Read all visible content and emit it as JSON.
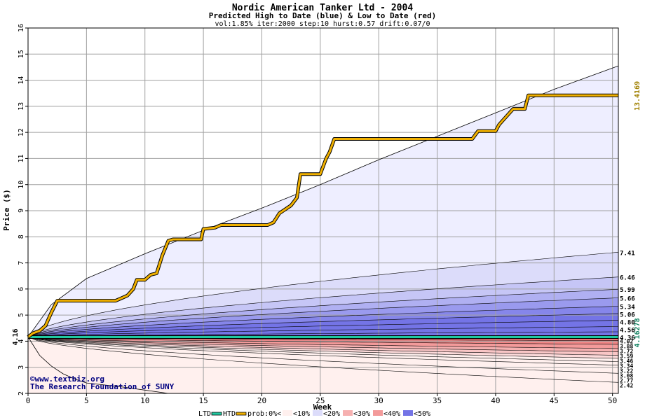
{
  "chart_data": {
    "type": "area",
    "title": "Nordic American Tanker Ltd - 2004",
    "subtitle": "Predicted High to Date (blue) &  Low to Date (red)",
    "params_line": "vol:1.85% iter:2000 step:10 hurst:0.57 drift:0.07/0",
    "xlabel": "Week",
    "ylabel": "Price ($)",
    "xlim": [
      0,
      50
    ],
    "ylim": [
      2,
      16
    ],
    "x_ticks": [
      0,
      5,
      10,
      15,
      20,
      25,
      30,
      35,
      40,
      45,
      50
    ],
    "y_ticks": [
      2,
      3,
      4,
      5,
      6,
      7,
      8,
      9,
      10,
      11,
      12,
      13,
      14,
      15,
      16
    ],
    "grid": true,
    "start_price": 4.16,
    "start_price_label": "4.16",
    "htd_end_label": "13.4169",
    "ltd_end_label": "4.16278",
    "colors": {
      "plot_bg": "#ffffff",
      "grid": "#a0a0a0",
      "htd": "#f0b000",
      "htd_edge": "#000000",
      "ltd": "#20c8a0",
      "htd_label": "#a08000",
      "ltd_label": "#108060",
      "watermark": "#000080",
      "blue_bands": [
        "#eeeeff",
        "#dcdcfa",
        "#c6c6f6",
        "#b0b0f2",
        "#9a9aee",
        "#8686ea",
        "#7474e6"
      ],
      "red_bands": [
        "#fff0ee",
        "#fcdada",
        "#f9c6c6",
        "#f6b0b0",
        "#f39a9a",
        "#f08686",
        "#ee7474"
      ]
    },
    "high_quantiles": {
      "labels": [
        "7.41",
        "6.46",
        "5.99",
        "5.66",
        "5.34",
        "5.06",
        "4.80",
        "4.56",
        "4.36"
      ],
      "end_values": [
        7.41,
        6.46,
        5.99,
        5.66,
        5.34,
        5.06,
        4.8,
        4.56,
        4.36
      ]
    },
    "low_quantiles": {
      "labels": [
        "4.02",
        "3.88",
        "3.72",
        "3.59",
        "3.46",
        "3.34",
        "3.22",
        "3.08",
        "2.77",
        "2.42"
      ],
      "end_values": [
        4.02,
        3.88,
        3.72,
        3.59,
        3.46,
        3.34,
        3.22,
        3.08,
        2.77,
        2.42
      ]
    },
    "envelope_high": {
      "x": [
        0,
        2,
        5,
        10,
        15,
        20,
        25,
        30,
        35,
        40,
        45,
        50.5
      ],
      "y": [
        4.16,
        5.4,
        6.4,
        7.35,
        8.25,
        9.1,
        10.0,
        10.95,
        11.85,
        12.75,
        13.65,
        14.55
      ]
    },
    "envelope_low": {
      "x": [
        0,
        1,
        2,
        3,
        4,
        5,
        8,
        12
      ],
      "y": [
        4.16,
        3.45,
        3.05,
        2.75,
        2.55,
        2.4,
        2.25,
        2.0
      ]
    },
    "htd_series": {
      "name": "HTD",
      "x": [
        0,
        0.4,
        1.0,
        1.5,
        2.0,
        2.5,
        7.5,
        8.0,
        8.5,
        9.0,
        9.3,
        10.0,
        10.5,
        11.0,
        11.5,
        12.0,
        12.4,
        14.8,
        15.0,
        16.0,
        16.5,
        20.5,
        21.0,
        21.5,
        22.0,
        22.5,
        23.0,
        23.3,
        25.0,
        25.5,
        25.8,
        26.2,
        38.0,
        38.5,
        40.0,
        40.3,
        40.7,
        41.1,
        41.5,
        42.5,
        42.8,
        50.5
      ],
      "y": [
        4.16,
        4.3,
        4.4,
        4.6,
        5.1,
        5.55,
        5.55,
        5.65,
        5.75,
        6.0,
        6.35,
        6.35,
        6.55,
        6.6,
        7.3,
        7.85,
        7.9,
        7.9,
        8.3,
        8.35,
        8.45,
        8.45,
        8.55,
        8.9,
        9.05,
        9.2,
        9.5,
        10.4,
        10.4,
        11.0,
        11.25,
        11.75,
        11.75,
        12.05,
        12.05,
        12.3,
        12.5,
        12.7,
        12.9,
        12.9,
        13.42,
        13.42
      ]
    },
    "ltd_series": {
      "name": "LTD",
      "x": [
        0,
        50.5
      ],
      "y": [
        4.16,
        4.16
      ]
    },
    "legend": {
      "items": [
        {
          "label": "LTD",
          "color": "#20c8a0",
          "kind": "line"
        },
        {
          "label": "HTD",
          "color": "#f0b000",
          "kind": "line"
        },
        {
          "label": "prob:0%<",
          "color": "#ffffff",
          "kind": "swatch"
        },
        {
          "label": "<10%",
          "color": "#fff0ee",
          "kind": "swatch"
        },
        {
          "label": "<20%",
          "color": "#dcdcfa",
          "kind": "swatch"
        },
        {
          "label": "<30%",
          "color": "#f6b0b0",
          "kind": "swatch"
        },
        {
          "label": "<40%",
          "color": "#f39a9a",
          "kind": "swatch"
        },
        {
          "label": "<50%",
          "color": "#7474e6",
          "kind": "swatch"
        }
      ]
    },
    "watermark_lines": [
      "©www.textbiz.org",
      "The Research Foundation of SUNY"
    ]
  }
}
